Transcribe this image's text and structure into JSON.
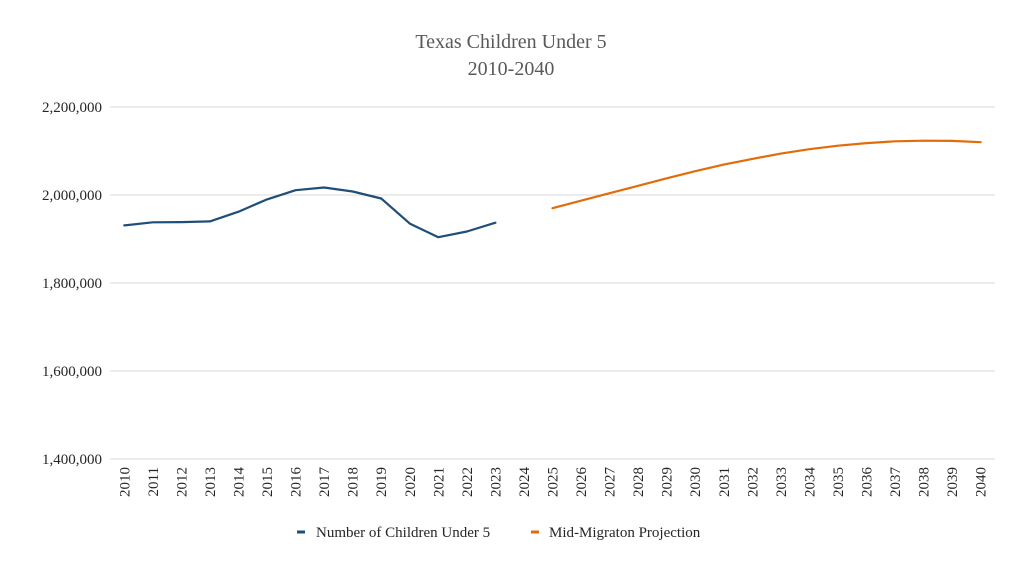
{
  "chart_data": {
    "type": "line",
    "title": "Texas Children Under 5",
    "subtitle": "2010-2040",
    "xlabel": "",
    "ylabel": "",
    "categories": [
      "2010",
      "2011",
      "2012",
      "2013",
      "2014",
      "2015",
      "2016",
      "2017",
      "2018",
      "2019",
      "2020",
      "2021",
      "2022",
      "2023",
      "2024",
      "2025",
      "2026",
      "2027",
      "2028",
      "2029",
      "2030",
      "2031",
      "2032",
      "2033",
      "2034",
      "2035",
      "2036",
      "2037",
      "2038",
      "2039",
      "2040"
    ],
    "ylim": [
      1400000,
      2200000
    ],
    "yticks": [
      1400000,
      1600000,
      1800000,
      2000000,
      2200000
    ],
    "ytick_labels": [
      "1,400,000",
      "1,600,000",
      "1,800,000",
      "2,000,000",
      "2,200,000"
    ],
    "grid": true,
    "legend_position": "bottom",
    "series": [
      {
        "name": "Number of Children Under 5",
        "color": "#1f4e79",
        "values": [
          1931000,
          1938000,
          1938500,
          1940000,
          1962000,
          1990000,
          2011000,
          2017000,
          2008000,
          1992000,
          1935000,
          1904000,
          1917000,
          1937000,
          null,
          null,
          null,
          null,
          null,
          null,
          null,
          null,
          null,
          null,
          null,
          null,
          null,
          null,
          null,
          null,
          null
        ]
      },
      {
        "name": "Mid-Migraton Projection",
        "color": "#e36c0a",
        "values": [
          null,
          null,
          null,
          null,
          null,
          null,
          null,
          null,
          null,
          null,
          null,
          null,
          null,
          null,
          null,
          1970000,
          1987000,
          2004000,
          2021000,
          2038000,
          2054000,
          2069000,
          2082000,
          2094000,
          2104000,
          2112000,
          2118000,
          2122000,
          2123500,
          2123000,
          2120000
        ]
      }
    ]
  }
}
